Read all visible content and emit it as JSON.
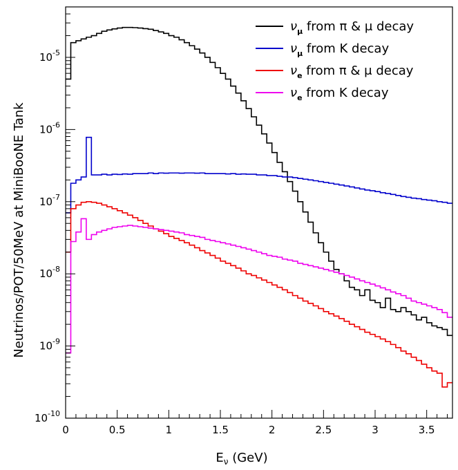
{
  "chart_data": {
    "type": "line",
    "style": "step",
    "xlabel": "E",
    "xlabel_sub": "ν",
    "xlabel_unit": " (GeV)",
    "ylabel": "Neutrinos/POT/50MeV at MiniBooNE Tank",
    "xlim": [
      0,
      3.75
    ],
    "ylim": [
      1e-10,
      5e-05
    ],
    "yscale": "log",
    "grid": false,
    "legend_position": "top-right",
    "x_ticks": [
      {
        "value": 0,
        "label": "0"
      },
      {
        "value": 0.5,
        "label": "0.5"
      },
      {
        "value": 1,
        "label": "1"
      },
      {
        "value": 1.5,
        "label": "1.5"
      },
      {
        "value": 2,
        "label": "2"
      },
      {
        "value": 2.5,
        "label": "2.5"
      },
      {
        "value": 3,
        "label": "3"
      },
      {
        "value": 3.5,
        "label": "3.5"
      }
    ],
    "y_ticks": [
      {
        "value": 1e-10,
        "base": "10",
        "exp": "-10"
      },
      {
        "value": 1e-09,
        "base": "10",
        "exp": "-9"
      },
      {
        "value": 1e-08,
        "base": "10",
        "exp": "-8"
      },
      {
        "value": 1e-07,
        "base": "10",
        "exp": "-7"
      },
      {
        "value": 1e-06,
        "base": "10",
        "exp": "-6"
      },
      {
        "value": 1e-05,
        "base": "10",
        "exp": "-5"
      }
    ],
    "bin_width": 0.05,
    "series": [
      {
        "name": "ν",
        "name_sub": "μ",
        "name_rest": " from π & μ decay",
        "color": "#000000",
        "values": [
          5e-06,
          1.6e-05,
          1.7e-05,
          1.8e-05,
          1.9e-05,
          2e-05,
          2.15e-05,
          2.3e-05,
          2.4e-05,
          2.48e-05,
          2.55e-05,
          2.6e-05,
          2.6e-05,
          2.58e-05,
          2.55e-05,
          2.5e-05,
          2.45e-05,
          2.35e-05,
          2.25e-05,
          2.15e-05,
          2e-05,
          1.9e-05,
          1.75e-05,
          1.6e-05,
          1.45e-05,
          1.3e-05,
          1.15e-05,
          1e-05,
          8.5e-06,
          7.2e-06,
          6e-06,
          5e-06,
          4e-06,
          3.2e-06,
          2.5e-06,
          1.95e-06,
          1.5e-06,
          1.15e-06,
          8.7e-07,
          6.5e-07,
          4.8e-07,
          3.5e-07,
          2.6e-07,
          1.9e-07,
          1.4e-07,
          1e-07,
          7.2e-08,
          5.2e-08,
          3.7e-08,
          2.7e-08,
          2e-08,
          1.5e-08,
          1.15e-08,
          1e-08,
          8e-09,
          6.5e-09,
          6e-09,
          5e-09,
          6e-09,
          4.3e-09,
          4e-09,
          3.4e-09,
          4.6e-09,
          3.2e-09,
          3e-09,
          3.4e-09,
          3e-09,
          2.7e-09,
          2.3e-09,
          2.5e-09,
          2.1e-09,
          1.9e-09,
          1.8e-09,
          1.7e-09,
          1.4e-09
        ]
      },
      {
        "name": "ν",
        "name_sub": "μ",
        "name_rest": " from K decay",
        "color": "#0000cc",
        "values": [
          7e-08,
          1.8e-07,
          2e-07,
          2.2e-07,
          7.8e-07,
          2.35e-07,
          2.35e-07,
          2.4e-07,
          2.35e-07,
          2.4e-07,
          2.38e-07,
          2.42e-07,
          2.4e-07,
          2.45e-07,
          2.45e-07,
          2.45e-07,
          2.5e-07,
          2.45e-07,
          2.5e-07,
          2.48e-07,
          2.5e-07,
          2.5e-07,
          2.48e-07,
          2.5e-07,
          2.5e-07,
          2.48e-07,
          2.5e-07,
          2.45e-07,
          2.45e-07,
          2.45e-07,
          2.45e-07,
          2.42e-07,
          2.45e-07,
          2.4e-07,
          2.42e-07,
          2.4e-07,
          2.4e-07,
          2.35e-07,
          2.35e-07,
          2.3e-07,
          2.3e-07,
          2.25e-07,
          2.2e-07,
          2.2e-07,
          2.15e-07,
          2.1e-07,
          2.05e-07,
          2e-07,
          1.95e-07,
          1.9e-07,
          1.85e-07,
          1.8e-07,
          1.75e-07,
          1.7e-07,
          1.65e-07,
          1.6e-07,
          1.55e-07,
          1.5e-07,
          1.45e-07,
          1.42e-07,
          1.38e-07,
          1.33e-07,
          1.3e-07,
          1.26e-07,
          1.22e-07,
          1.18e-07,
          1.15e-07,
          1.12e-07,
          1.1e-07,
          1.07e-07,
          1.05e-07,
          1.03e-07,
          1e-07,
          9.8e-08,
          9.5e-08
        ]
      },
      {
        "name": "ν",
        "name_sub": "e",
        "name_rest": " from π & μ decay",
        "color": "#ee0000",
        "values": [
          2e-08,
          8e-08,
          9e-08,
          9.8e-08,
          1e-07,
          9.8e-08,
          9.5e-08,
          9e-08,
          8.5e-08,
          8e-08,
          7.5e-08,
          7e-08,
          6.5e-08,
          6e-08,
          5.5e-08,
          5e-08,
          4.6e-08,
          4.2e-08,
          3.9e-08,
          3.6e-08,
          3.3e-08,
          3.1e-08,
          2.9e-08,
          2.7e-08,
          2.5e-08,
          2.3e-08,
          2.1e-08,
          1.95e-08,
          1.8e-08,
          1.65e-08,
          1.5e-08,
          1.4e-08,
          1.3e-08,
          1.2e-08,
          1.1e-08,
          1e-08,
          9.5e-09,
          8.8e-09,
          8.2e-09,
          7.6e-09,
          7e-09,
          6.5e-09,
          6e-09,
          5.5e-09,
          5e-09,
          4.6e-09,
          4.2e-09,
          3.9e-09,
          3.6e-09,
          3.3e-09,
          3e-09,
          2.8e-09,
          2.6e-09,
          2.4e-09,
          2.2e-09,
          2e-09,
          1.85e-09,
          1.7e-09,
          1.55e-09,
          1.45e-09,
          1.35e-09,
          1.25e-09,
          1.15e-09,
          1.05e-09,
          9.5e-10,
          8.5e-10,
          7.8e-10,
          7e-10,
          6.3e-10,
          5.6e-10,
          5e-10,
          4.5e-10,
          4.2e-10,
          2.7e-10,
          3.1e-10
        ]
      },
      {
        "name": "ν",
        "name_sub": "e",
        "name_rest": " from K decay",
        "color": "#ee00ee",
        "values": [
          8e-10,
          2.8e-08,
          3.8e-08,
          5.8e-08,
          3e-08,
          3.5e-08,
          3.8e-08,
          4e-08,
          4.2e-08,
          4.4e-08,
          4.5e-08,
          4.6e-08,
          4.7e-08,
          4.6e-08,
          4.5e-08,
          4.4e-08,
          4.3e-08,
          4.2e-08,
          4.1e-08,
          4e-08,
          3.9e-08,
          3.8e-08,
          3.7e-08,
          3.5e-08,
          3.4e-08,
          3.3e-08,
          3.2e-08,
          3e-08,
          2.9e-08,
          2.8e-08,
          2.7e-08,
          2.6e-08,
          2.5e-08,
          2.4e-08,
          2.3e-08,
          2.2e-08,
          2.1e-08,
          2e-08,
          1.9e-08,
          1.8e-08,
          1.75e-08,
          1.7e-08,
          1.6e-08,
          1.55e-08,
          1.5e-08,
          1.4e-08,
          1.35e-08,
          1.3e-08,
          1.25e-08,
          1.2e-08,
          1.15e-08,
          1.1e-08,
          1.05e-08,
          1e-08,
          9.5e-09,
          9e-09,
          8.5e-09,
          8e-09,
          7.6e-09,
          7.2e-09,
          6.8e-09,
          6.4e-09,
          6e-09,
          5.6e-09,
          5.3e-09,
          5e-09,
          4.6e-09,
          4.2e-09,
          4e-09,
          3.8e-09,
          3.6e-09,
          3.4e-09,
          3.2e-09,
          2.9e-09,
          2.5e-09
        ]
      }
    ]
  }
}
